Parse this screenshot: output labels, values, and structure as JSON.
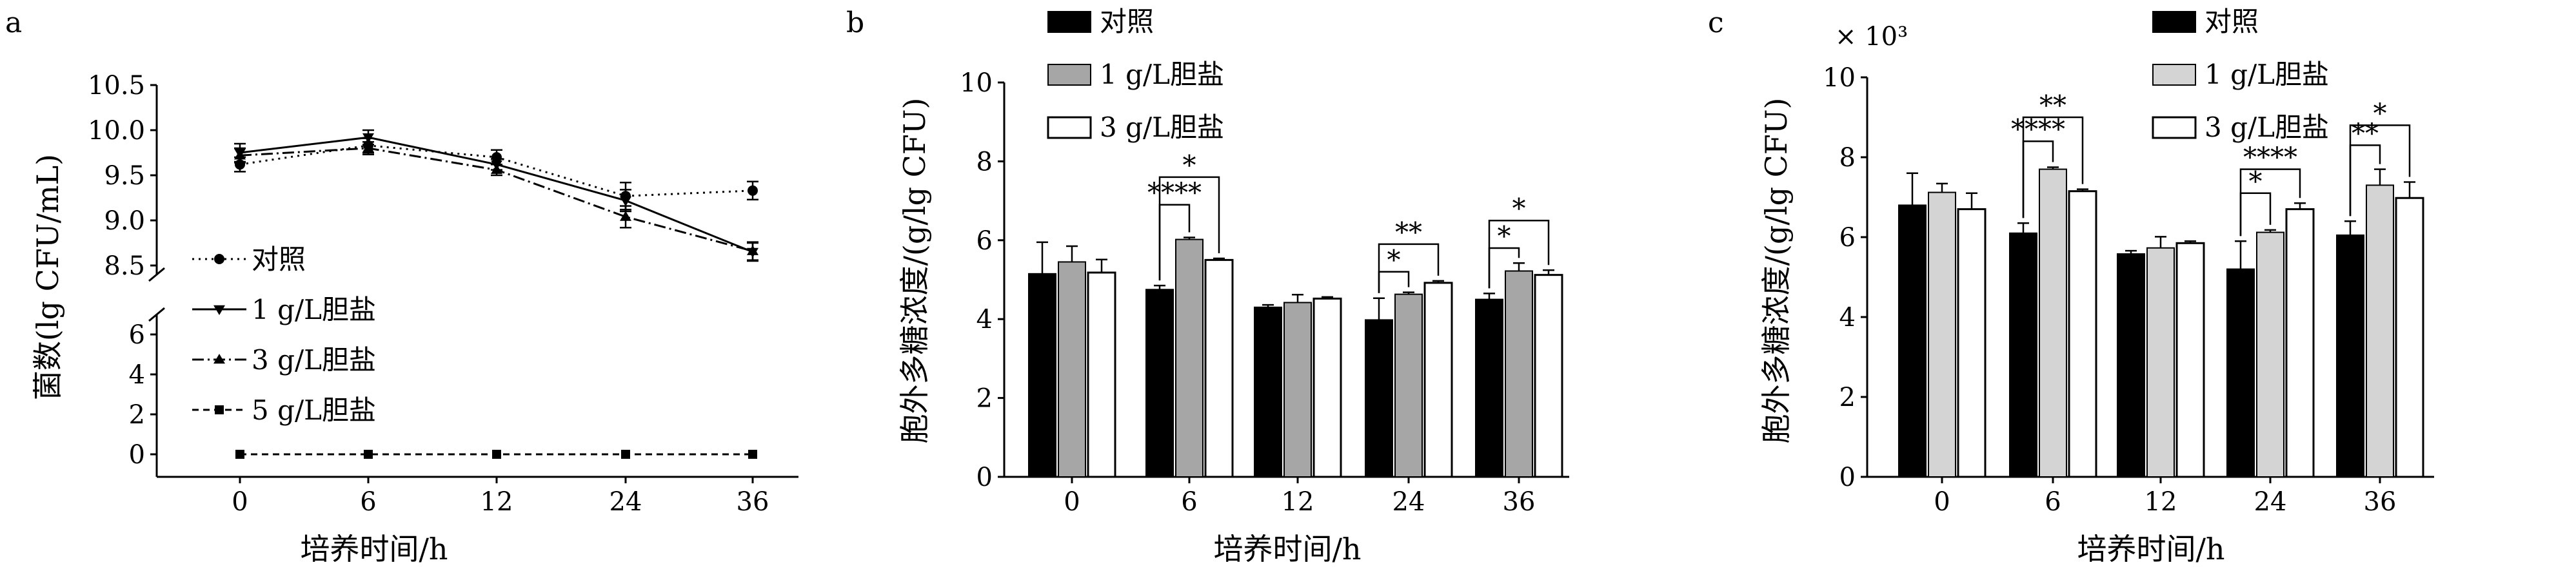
{
  "chart_data": [
    {
      "panel": "a",
      "type": "line",
      "xlabel": "培养时间/h",
      "ylabel": "菌数(lg CFU/mL)",
      "x": [
        0,
        6,
        12,
        24,
        36
      ],
      "x_ticks": [
        "0",
        "6",
        "12",
        "24",
        "36"
      ],
      "y_ticks_upper": [
        "8.5",
        "9.0",
        "9.5",
        "10.0",
        "10.5"
      ],
      "y_ticks_lower": [
        "0",
        "2",
        "4",
        "6"
      ],
      "ylim_upper": [
        8.4,
        10.5
      ],
      "ylim_lower": [
        0,
        7
      ],
      "axis_break": true,
      "legend_position": "left-middle",
      "series": [
        {
          "name": "对照",
          "marker": "circle",
          "line": "dotted",
          "values": [
            9.62,
            9.83,
            9.7,
            9.27,
            9.33
          ],
          "errors": [
            0.08,
            0.08,
            0.08,
            0.15,
            0.1
          ]
        },
        {
          "name": "1 g/L胆盐",
          "marker": "triangle-down",
          "line": "solid",
          "values": [
            9.75,
            9.92,
            9.62,
            9.22,
            8.65
          ],
          "errors": [
            0.1,
            0.08,
            0.06,
            0.12,
            0.1
          ]
        },
        {
          "name": "3 g/L胆盐",
          "marker": "triangle-up",
          "line": "dashdot",
          "values": [
            9.72,
            9.8,
            9.56,
            9.04,
            8.66
          ],
          "errors": [
            0.08,
            0.07,
            0.06,
            0.12,
            0.1
          ]
        },
        {
          "name": "5 g/L胆盐",
          "marker": "square",
          "line": "dashed",
          "values": [
            0,
            0,
            0,
            0,
            0
          ],
          "errors": [
            0,
            0,
            0,
            0,
            0
          ]
        }
      ]
    },
    {
      "panel": "b",
      "type": "bar",
      "xlabel": "培养时间/h",
      "ylabel": "胞外多糖浓度/(g/lg CFU)",
      "categories": [
        "0",
        "6",
        "12",
        "24",
        "36"
      ],
      "ylim": [
        0,
        10
      ],
      "y_ticks": [
        "0",
        "2",
        "4",
        "6",
        "8",
        "10"
      ],
      "legend_position": "top-left",
      "series": [
        {
          "name": "对照",
          "color": "#000000",
          "values": [
            5.15,
            4.75,
            4.3,
            3.98,
            4.5
          ],
          "errors": [
            0.8,
            0.1,
            0.06,
            0.55,
            0.15
          ]
        },
        {
          "name": "1 g/L胆盐",
          "color": "#a6a6a6",
          "values": [
            5.45,
            6.02,
            4.42,
            4.63,
            5.22
          ],
          "errors": [
            0.4,
            0.05,
            0.2,
            0.05,
            0.2
          ]
        },
        {
          "name": "3 g/L胆盐",
          "color": "#ffffff",
          "values": [
            5.18,
            5.5,
            4.52,
            4.92,
            5.12
          ],
          "errors": [
            0.33,
            0.04,
            0.04,
            0.05,
            0.12
          ]
        }
      ],
      "annotations": [
        {
          "category": "6",
          "from": 0,
          "to": 1,
          "label": "****",
          "level": 6.9
        },
        {
          "category": "6",
          "from": 0,
          "to": 2,
          "label": "*",
          "level": 7.6
        },
        {
          "category": "24",
          "from": 0,
          "to": 1,
          "label": "*",
          "level": 5.2
        },
        {
          "category": "24",
          "from": 0,
          "to": 2,
          "label": "**",
          "level": 5.9
        },
        {
          "category": "36",
          "from": 0,
          "to": 1,
          "label": "*",
          "level": 5.8
        },
        {
          "category": "36",
          "from": 0,
          "to": 2,
          "label": "*",
          "level": 6.5
        }
      ]
    },
    {
      "panel": "c",
      "type": "bar",
      "xlabel": "培养时间/h",
      "ylabel": "胞外多糖浓度/(g/lg CFU)",
      "y_multiplier": "× 10³",
      "categories": [
        "0",
        "6",
        "12",
        "24",
        "36"
      ],
      "ylim": [
        0,
        10
      ],
      "y_ticks": [
        "0",
        "2",
        "4",
        "6",
        "8",
        "10"
      ],
      "legend_position": "top-center",
      "series": [
        {
          "name": "对照",
          "color": "#000000",
          "values": [
            6.8,
            6.1,
            5.58,
            5.2,
            6.05
          ],
          "errors": [
            0.8,
            0.25,
            0.08,
            0.7,
            0.35
          ]
        },
        {
          "name": "1 g/L胆盐",
          "color": "#d4d4d4",
          "values": [
            7.12,
            7.7,
            5.73,
            6.12,
            7.3
          ],
          "errors": [
            0.22,
            0.05,
            0.28,
            0.06,
            0.4
          ]
        },
        {
          "name": "3 g/L胆盐",
          "color": "#ffffff",
          "values": [
            6.7,
            7.15,
            5.85,
            6.7,
            6.98
          ],
          "errors": [
            0.4,
            0.05,
            0.05,
            0.15,
            0.4
          ]
        }
      ],
      "annotations": [
        {
          "category": "6",
          "from": 0,
          "to": 1,
          "label": "****",
          "level": 8.4
        },
        {
          "category": "6",
          "from": 0,
          "to": 2,
          "label": "**",
          "level": 9.0
        },
        {
          "category": "24",
          "from": 0,
          "to": 1,
          "label": "*",
          "level": 7.1
        },
        {
          "category": "24",
          "from": 0,
          "to": 2,
          "label": "****",
          "level": 7.7
        },
        {
          "category": "36",
          "from": 0,
          "to": 1,
          "label": "**",
          "level": 8.3
        },
        {
          "category": "36",
          "from": 0,
          "to": 2,
          "label": "*",
          "level": 8.8
        }
      ]
    }
  ]
}
